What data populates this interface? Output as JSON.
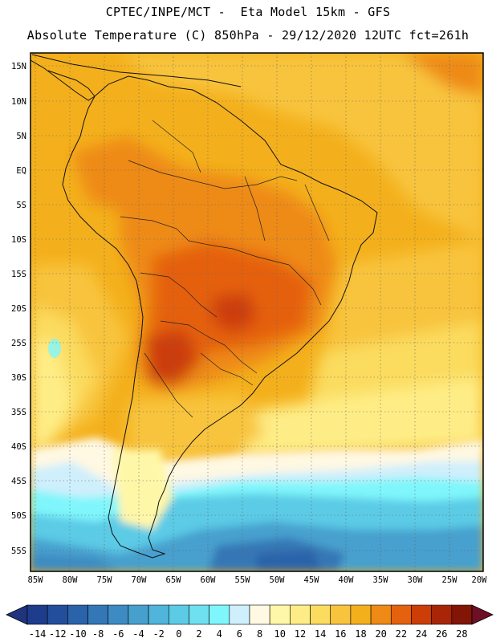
{
  "title_line1": "CPTEC/INPE/MCT -  Eta Model 15km - GFS",
  "title_line2": "Absolute Temperature (C) 850hPa - 29/12/2020 12UTC fct=261h",
  "lat_labels": [
    "15N",
    "10N",
    "5N",
    "EQ",
    "5S",
    "10S",
    "15S",
    "20S",
    "25S",
    "30S",
    "35S",
    "40S",
    "45S",
    "50S",
    "55S"
  ],
  "lon_labels": [
    "85W",
    "80W",
    "75W",
    "70W",
    "65W",
    "60W",
    "55W",
    "50W",
    "45W",
    "40W",
    "35W",
    "30W",
    "25W",
    "20W"
  ],
  "colorbar": {
    "labels": [
      "-14",
      "-12",
      "-10",
      "-8",
      "-6",
      "-4",
      "-2",
      "0",
      "2",
      "4",
      "6",
      "8",
      "10",
      "12",
      "14",
      "16",
      "18",
      "20",
      "22",
      "24",
      "26",
      "28"
    ],
    "colors": [
      "#1e3c8c",
      "#234e9b",
      "#2b63aa",
      "#3477b6",
      "#3d8bc2",
      "#46a0ce",
      "#4fb5da",
      "#5ccbe6",
      "#6ee0ef",
      "#7ff6fb",
      "#cfeffc",
      "#fff8e2",
      "#fff7a8",
      "#feed86",
      "#fbdc5f",
      "#f8c43d",
      "#f4b01c",
      "#ee8a15",
      "#e5610e",
      "#cc3d08",
      "#a82508",
      "#821505"
    ],
    "low_color": "#20337e",
    "high_color": "#6e0f26"
  }
}
